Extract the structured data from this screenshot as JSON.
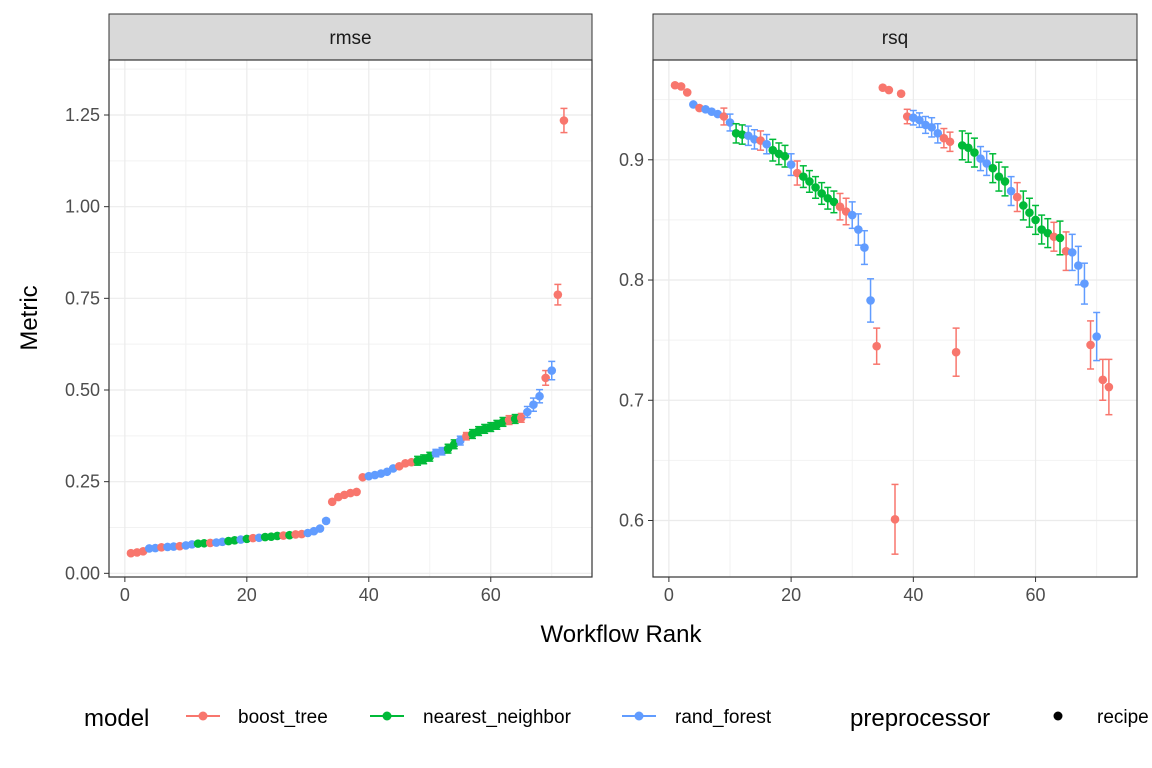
{
  "chart_data": {
    "type": "scatter",
    "xlabel": "Workflow Rank",
    "ylabel": "Metric",
    "grid": true,
    "legend_position": "bottom",
    "colors": {
      "boost_tree": "#F8766D",
      "nearest_neighbor": "#00BA38",
      "rand_forest": "#619CFF"
    },
    "legend": {
      "model_title": "model",
      "model_entries": [
        "boost_tree",
        "nearest_neighbor",
        "rand_forest"
      ],
      "preprocessor_title": "preprocessor",
      "preprocessor_entries": [
        "recipe"
      ]
    },
    "panels": [
      {
        "name": "rmse",
        "xlim": [
          -2.6,
          76.6
        ],
        "ylim": [
          -0.01,
          1.4
        ],
        "xticks": [
          0,
          20,
          40,
          60
        ],
        "yticks": [
          0.0,
          0.25,
          0.5,
          0.75,
          1.0,
          1.25
        ],
        "ytick_labels": [
          "0.00",
          "0.25",
          "0.50",
          "0.75",
          "1.00",
          "1.25"
        ],
        "points": [
          {
            "x": 1,
            "y": 0.055,
            "m": "boost_tree"
          },
          {
            "x": 2,
            "y": 0.057,
            "m": "boost_tree"
          },
          {
            "x": 3,
            "y": 0.06,
            "m": "boost_tree"
          },
          {
            "x": 4,
            "y": 0.068,
            "m": "rand_forest"
          },
          {
            "x": 5,
            "y": 0.069,
            "m": "rand_forest"
          },
          {
            "x": 6,
            "y": 0.071,
            "m": "boost_tree"
          },
          {
            "x": 7,
            "y": 0.072,
            "m": "rand_forest"
          },
          {
            "x": 8,
            "y": 0.073,
            "m": "rand_forest"
          },
          {
            "x": 9,
            "y": 0.074,
            "m": "boost_tree"
          },
          {
            "x": 10,
            "y": 0.076,
            "m": "rand_forest"
          },
          {
            "x": 11,
            "y": 0.079,
            "m": "rand_forest"
          },
          {
            "x": 12,
            "y": 0.081,
            "m": "nearest_neighbor"
          },
          {
            "x": 13,
            "y": 0.082,
            "m": "nearest_neighbor"
          },
          {
            "x": 14,
            "y": 0.083,
            "m": "boost_tree"
          },
          {
            "x": 15,
            "y": 0.084,
            "m": "rand_forest"
          },
          {
            "x": 16,
            "y": 0.086,
            "m": "rand_forest"
          },
          {
            "x": 17,
            "y": 0.088,
            "m": "nearest_neighbor"
          },
          {
            "x": 18,
            "y": 0.09,
            "m": "nearest_neighbor"
          },
          {
            "x": 19,
            "y": 0.092,
            "m": "rand_forest"
          },
          {
            "x": 20,
            "y": 0.094,
            "m": "nearest_neighbor"
          },
          {
            "x": 21,
            "y": 0.096,
            "m": "boost_tree"
          },
          {
            "x": 22,
            "y": 0.097,
            "m": "rand_forest"
          },
          {
            "x": 23,
            "y": 0.099,
            "m": "nearest_neighbor"
          },
          {
            "x": 24,
            "y": 0.1,
            "m": "nearest_neighbor"
          },
          {
            "x": 25,
            "y": 0.102,
            "m": "nearest_neighbor"
          },
          {
            "x": 26,
            "y": 0.103,
            "m": "boost_tree"
          },
          {
            "x": 27,
            "y": 0.104,
            "m": "nearest_neighbor"
          },
          {
            "x": 28,
            "y": 0.106,
            "m": "boost_tree"
          },
          {
            "x": 29,
            "y": 0.107,
            "m": "boost_tree"
          },
          {
            "x": 30,
            "y": 0.11,
            "m": "rand_forest"
          },
          {
            "x": 31,
            "y": 0.115,
            "m": "rand_forest"
          },
          {
            "x": 32,
            "y": 0.122,
            "m": "rand_forest"
          },
          {
            "x": 33,
            "y": 0.143,
            "m": "rand_forest",
            "e": 0.006
          },
          {
            "x": 34,
            "y": 0.195,
            "m": "boost_tree"
          },
          {
            "x": 35,
            "y": 0.208,
            "m": "boost_tree"
          },
          {
            "x": 36,
            "y": 0.214,
            "m": "boost_tree"
          },
          {
            "x": 37,
            "y": 0.219,
            "m": "boost_tree"
          },
          {
            "x": 38,
            "y": 0.222,
            "m": "boost_tree"
          },
          {
            "x": 39,
            "y": 0.262,
            "m": "boost_tree"
          },
          {
            "x": 40,
            "y": 0.265,
            "m": "rand_forest"
          },
          {
            "x": 41,
            "y": 0.268,
            "m": "rand_forest"
          },
          {
            "x": 42,
            "y": 0.272,
            "m": "rand_forest"
          },
          {
            "x": 43,
            "y": 0.277,
            "m": "rand_forest"
          },
          {
            "x": 44,
            "y": 0.286,
            "m": "rand_forest"
          },
          {
            "x": 45,
            "y": 0.292,
            "m": "boost_tree"
          },
          {
            "x": 46,
            "y": 0.3,
            "m": "boost_tree"
          },
          {
            "x": 47,
            "y": 0.303,
            "m": "boost_tree"
          },
          {
            "x": 48,
            "y": 0.307,
            "m": "nearest_neighbor",
            "e": 0.012
          },
          {
            "x": 49,
            "y": 0.311,
            "m": "nearest_neighbor",
            "e": 0.012
          },
          {
            "x": 50,
            "y": 0.318,
            "m": "nearest_neighbor",
            "e": 0.012
          },
          {
            "x": 51,
            "y": 0.328,
            "m": "rand_forest",
            "e": 0.01
          },
          {
            "x": 52,
            "y": 0.333,
            "m": "rand_forest",
            "e": 0.01
          },
          {
            "x": 53,
            "y": 0.34,
            "m": "nearest_neighbor",
            "e": 0.012
          },
          {
            "x": 54,
            "y": 0.352,
            "m": "nearest_neighbor",
            "e": 0.012
          },
          {
            "x": 55,
            "y": 0.362,
            "m": "rand_forest",
            "e": 0.012
          },
          {
            "x": 56,
            "y": 0.374,
            "m": "boost_tree",
            "e": 0.01
          },
          {
            "x": 57,
            "y": 0.38,
            "m": "nearest_neighbor",
            "e": 0.012
          },
          {
            "x": 58,
            "y": 0.388,
            "m": "nearest_neighbor",
            "e": 0.012
          },
          {
            "x": 59,
            "y": 0.394,
            "m": "nearest_neighbor",
            "e": 0.012
          },
          {
            "x": 60,
            "y": 0.399,
            "m": "nearest_neighbor",
            "e": 0.012
          },
          {
            "x": 61,
            "y": 0.405,
            "m": "nearest_neighbor",
            "e": 0.012
          },
          {
            "x": 62,
            "y": 0.413,
            "m": "nearest_neighbor",
            "e": 0.012
          },
          {
            "x": 63,
            "y": 0.418,
            "m": "boost_tree",
            "e": 0.012
          },
          {
            "x": 64,
            "y": 0.421,
            "m": "nearest_neighbor",
            "e": 0.012
          },
          {
            "x": 65,
            "y": 0.424,
            "m": "boost_tree",
            "e": 0.012
          },
          {
            "x": 66,
            "y": 0.44,
            "m": "rand_forest",
            "e": 0.015
          },
          {
            "x": 67,
            "y": 0.46,
            "m": "rand_forest",
            "e": 0.018
          },
          {
            "x": 68,
            "y": 0.483,
            "m": "rand_forest",
            "e": 0.018
          },
          {
            "x": 69,
            "y": 0.533,
            "m": "boost_tree",
            "e": 0.02
          },
          {
            "x": 70,
            "y": 0.553,
            "m": "rand_forest",
            "e": 0.025
          },
          {
            "x": 71,
            "y": 0.76,
            "m": "boost_tree",
            "e": 0.028
          },
          {
            "x": 72,
            "y": 1.235,
            "m": "boost_tree",
            "e": 0.033
          }
        ]
      },
      {
        "name": "rsq",
        "xlim": [
          -2.6,
          76.6
        ],
        "ylim": [
          0.553,
          0.983
        ],
        "xticks": [
          0,
          20,
          40,
          60
        ],
        "yticks": [
          0.6,
          0.7,
          0.8,
          0.9
        ],
        "ytick_labels": [
          "0.6",
          "0.7",
          "0.8",
          "0.9"
        ],
        "points": [
          {
            "x": 1,
            "y": 0.962,
            "m": "boost_tree"
          },
          {
            "x": 2,
            "y": 0.961,
            "m": "boost_tree"
          },
          {
            "x": 3,
            "y": 0.956,
            "m": "boost_tree"
          },
          {
            "x": 4,
            "y": 0.946,
            "m": "rand_forest"
          },
          {
            "x": 5,
            "y": 0.943,
            "m": "boost_tree"
          },
          {
            "x": 6,
            "y": 0.942,
            "m": "rand_forest"
          },
          {
            "x": 7,
            "y": 0.94,
            "m": "rand_forest"
          },
          {
            "x": 8,
            "y": 0.938,
            "m": "rand_forest"
          },
          {
            "x": 9,
            "y": 0.936,
            "m": "boost_tree",
            "e": 0.007
          },
          {
            "x": 10,
            "y": 0.931,
            "m": "rand_forest",
            "e": 0.007
          },
          {
            "x": 11,
            "y": 0.922,
            "m": "nearest_neighbor",
            "e": 0.008
          },
          {
            "x": 12,
            "y": 0.921,
            "m": "nearest_neighbor",
            "e": 0.008
          },
          {
            "x": 13,
            "y": 0.92,
            "m": "rand_forest",
            "e": 0.008
          },
          {
            "x": 14,
            "y": 0.917,
            "m": "rand_forest",
            "e": 0.008
          },
          {
            "x": 15,
            "y": 0.916,
            "m": "boost_tree",
            "e": 0.008
          },
          {
            "x": 16,
            "y": 0.913,
            "m": "rand_forest",
            "e": 0.008
          },
          {
            "x": 17,
            "y": 0.908,
            "m": "nearest_neighbor",
            "e": 0.009
          },
          {
            "x": 18,
            "y": 0.905,
            "m": "nearest_neighbor",
            "e": 0.009
          },
          {
            "x": 19,
            "y": 0.903,
            "m": "nearest_neighbor",
            "e": 0.009
          },
          {
            "x": 20,
            "y": 0.896,
            "m": "rand_forest",
            "e": 0.009
          },
          {
            "x": 21,
            "y": 0.889,
            "m": "boost_tree",
            "e": 0.01
          },
          {
            "x": 22,
            "y": 0.886,
            "m": "nearest_neighbor",
            "e": 0.009
          },
          {
            "x": 23,
            "y": 0.882,
            "m": "nearest_neighbor",
            "e": 0.009
          },
          {
            "x": 24,
            "y": 0.877,
            "m": "nearest_neighbor",
            "e": 0.009
          },
          {
            "x": 25,
            "y": 0.872,
            "m": "nearest_neighbor",
            "e": 0.009
          },
          {
            "x": 26,
            "y": 0.868,
            "m": "nearest_neighbor",
            "e": 0.009
          },
          {
            "x": 27,
            "y": 0.865,
            "m": "nearest_neighbor",
            "e": 0.009
          },
          {
            "x": 28,
            "y": 0.861,
            "m": "boost_tree",
            "e": 0.011
          },
          {
            "x": 29,
            "y": 0.857,
            "m": "boost_tree",
            "e": 0.011
          },
          {
            "x": 30,
            "y": 0.854,
            "m": "rand_forest",
            "e": 0.011
          },
          {
            "x": 31,
            "y": 0.842,
            "m": "rand_forest",
            "e": 0.013
          },
          {
            "x": 32,
            "y": 0.827,
            "m": "rand_forest",
            "e": 0.014
          },
          {
            "x": 33,
            "y": 0.783,
            "m": "rand_forest",
            "e": 0.018
          },
          {
            "x": 34,
            "y": 0.745,
            "m": "boost_tree",
            "e": 0.015
          },
          {
            "x": 35,
            "y": 0.96,
            "m": "boost_tree"
          },
          {
            "x": 36,
            "y": 0.958,
            "m": "boost_tree"
          },
          {
            "x": 37,
            "y": 0.601,
            "m": "boost_tree",
            "e": 0.029
          },
          {
            "x": 38,
            "y": 0.955,
            "m": "boost_tree"
          },
          {
            "x": 39,
            "y": 0.936,
            "m": "boost_tree",
            "e": 0.006
          },
          {
            "x": 40,
            "y": 0.935,
            "m": "rand_forest",
            "e": 0.006
          },
          {
            "x": 41,
            "y": 0.933,
            "m": "rand_forest",
            "e": 0.006
          },
          {
            "x": 42,
            "y": 0.929,
            "m": "rand_forest",
            "e": 0.007
          },
          {
            "x": 43,
            "y": 0.927,
            "m": "rand_forest",
            "e": 0.008
          },
          {
            "x": 44,
            "y": 0.922,
            "m": "rand_forest",
            "e": 0.008
          },
          {
            "x": 45,
            "y": 0.918,
            "m": "boost_tree",
            "e": 0.008
          },
          {
            "x": 46,
            "y": 0.915,
            "m": "boost_tree",
            "e": 0.008
          },
          {
            "x": 47,
            "y": 0.74,
            "m": "boost_tree",
            "e": 0.02
          },
          {
            "x": 48,
            "y": 0.912,
            "m": "nearest_neighbor",
            "e": 0.012
          },
          {
            "x": 49,
            "y": 0.91,
            "m": "nearest_neighbor",
            "e": 0.012
          },
          {
            "x": 50,
            "y": 0.906,
            "m": "nearest_neighbor",
            "e": 0.012
          },
          {
            "x": 51,
            "y": 0.901,
            "m": "rand_forest",
            "e": 0.01
          },
          {
            "x": 52,
            "y": 0.897,
            "m": "rand_forest",
            "e": 0.01
          },
          {
            "x": 53,
            "y": 0.893,
            "m": "nearest_neighbor",
            "e": 0.012
          },
          {
            "x": 54,
            "y": 0.886,
            "m": "nearest_neighbor",
            "e": 0.012
          },
          {
            "x": 55,
            "y": 0.882,
            "m": "nearest_neighbor",
            "e": 0.012
          },
          {
            "x": 56,
            "y": 0.874,
            "m": "rand_forest",
            "e": 0.012
          },
          {
            "x": 57,
            "y": 0.869,
            "m": "boost_tree",
            "e": 0.012
          },
          {
            "x": 58,
            "y": 0.862,
            "m": "nearest_neighbor",
            "e": 0.012
          },
          {
            "x": 59,
            "y": 0.856,
            "m": "nearest_neighbor",
            "e": 0.012
          },
          {
            "x": 60,
            "y": 0.85,
            "m": "nearest_neighbor",
            "e": 0.012
          },
          {
            "x": 61,
            "y": 0.842,
            "m": "nearest_neighbor",
            "e": 0.012
          },
          {
            "x": 62,
            "y": 0.839,
            "m": "nearest_neighbor",
            "e": 0.012
          },
          {
            "x": 63,
            "y": 0.836,
            "m": "boost_tree",
            "e": 0.012
          },
          {
            "x": 64,
            "y": 0.835,
            "m": "nearest_neighbor",
            "e": 0.014
          },
          {
            "x": 65,
            "y": 0.824,
            "m": "boost_tree",
            "e": 0.016
          },
          {
            "x": 66,
            "y": 0.823,
            "m": "rand_forest",
            "e": 0.015
          },
          {
            "x": 67,
            "y": 0.812,
            "m": "rand_forest",
            "e": 0.016
          },
          {
            "x": 68,
            "y": 0.797,
            "m": "rand_forest",
            "e": 0.017
          },
          {
            "x": 69,
            "y": 0.746,
            "m": "boost_tree",
            "e": 0.02
          },
          {
            "x": 70,
            "y": 0.753,
            "m": "rand_forest",
            "e": 0.02
          },
          {
            "x": 71,
            "y": 0.717,
            "m": "boost_tree",
            "e": 0.017
          },
          {
            "x": 72,
            "y": 0.711,
            "m": "boost_tree",
            "e": 0.023
          }
        ]
      }
    ]
  }
}
